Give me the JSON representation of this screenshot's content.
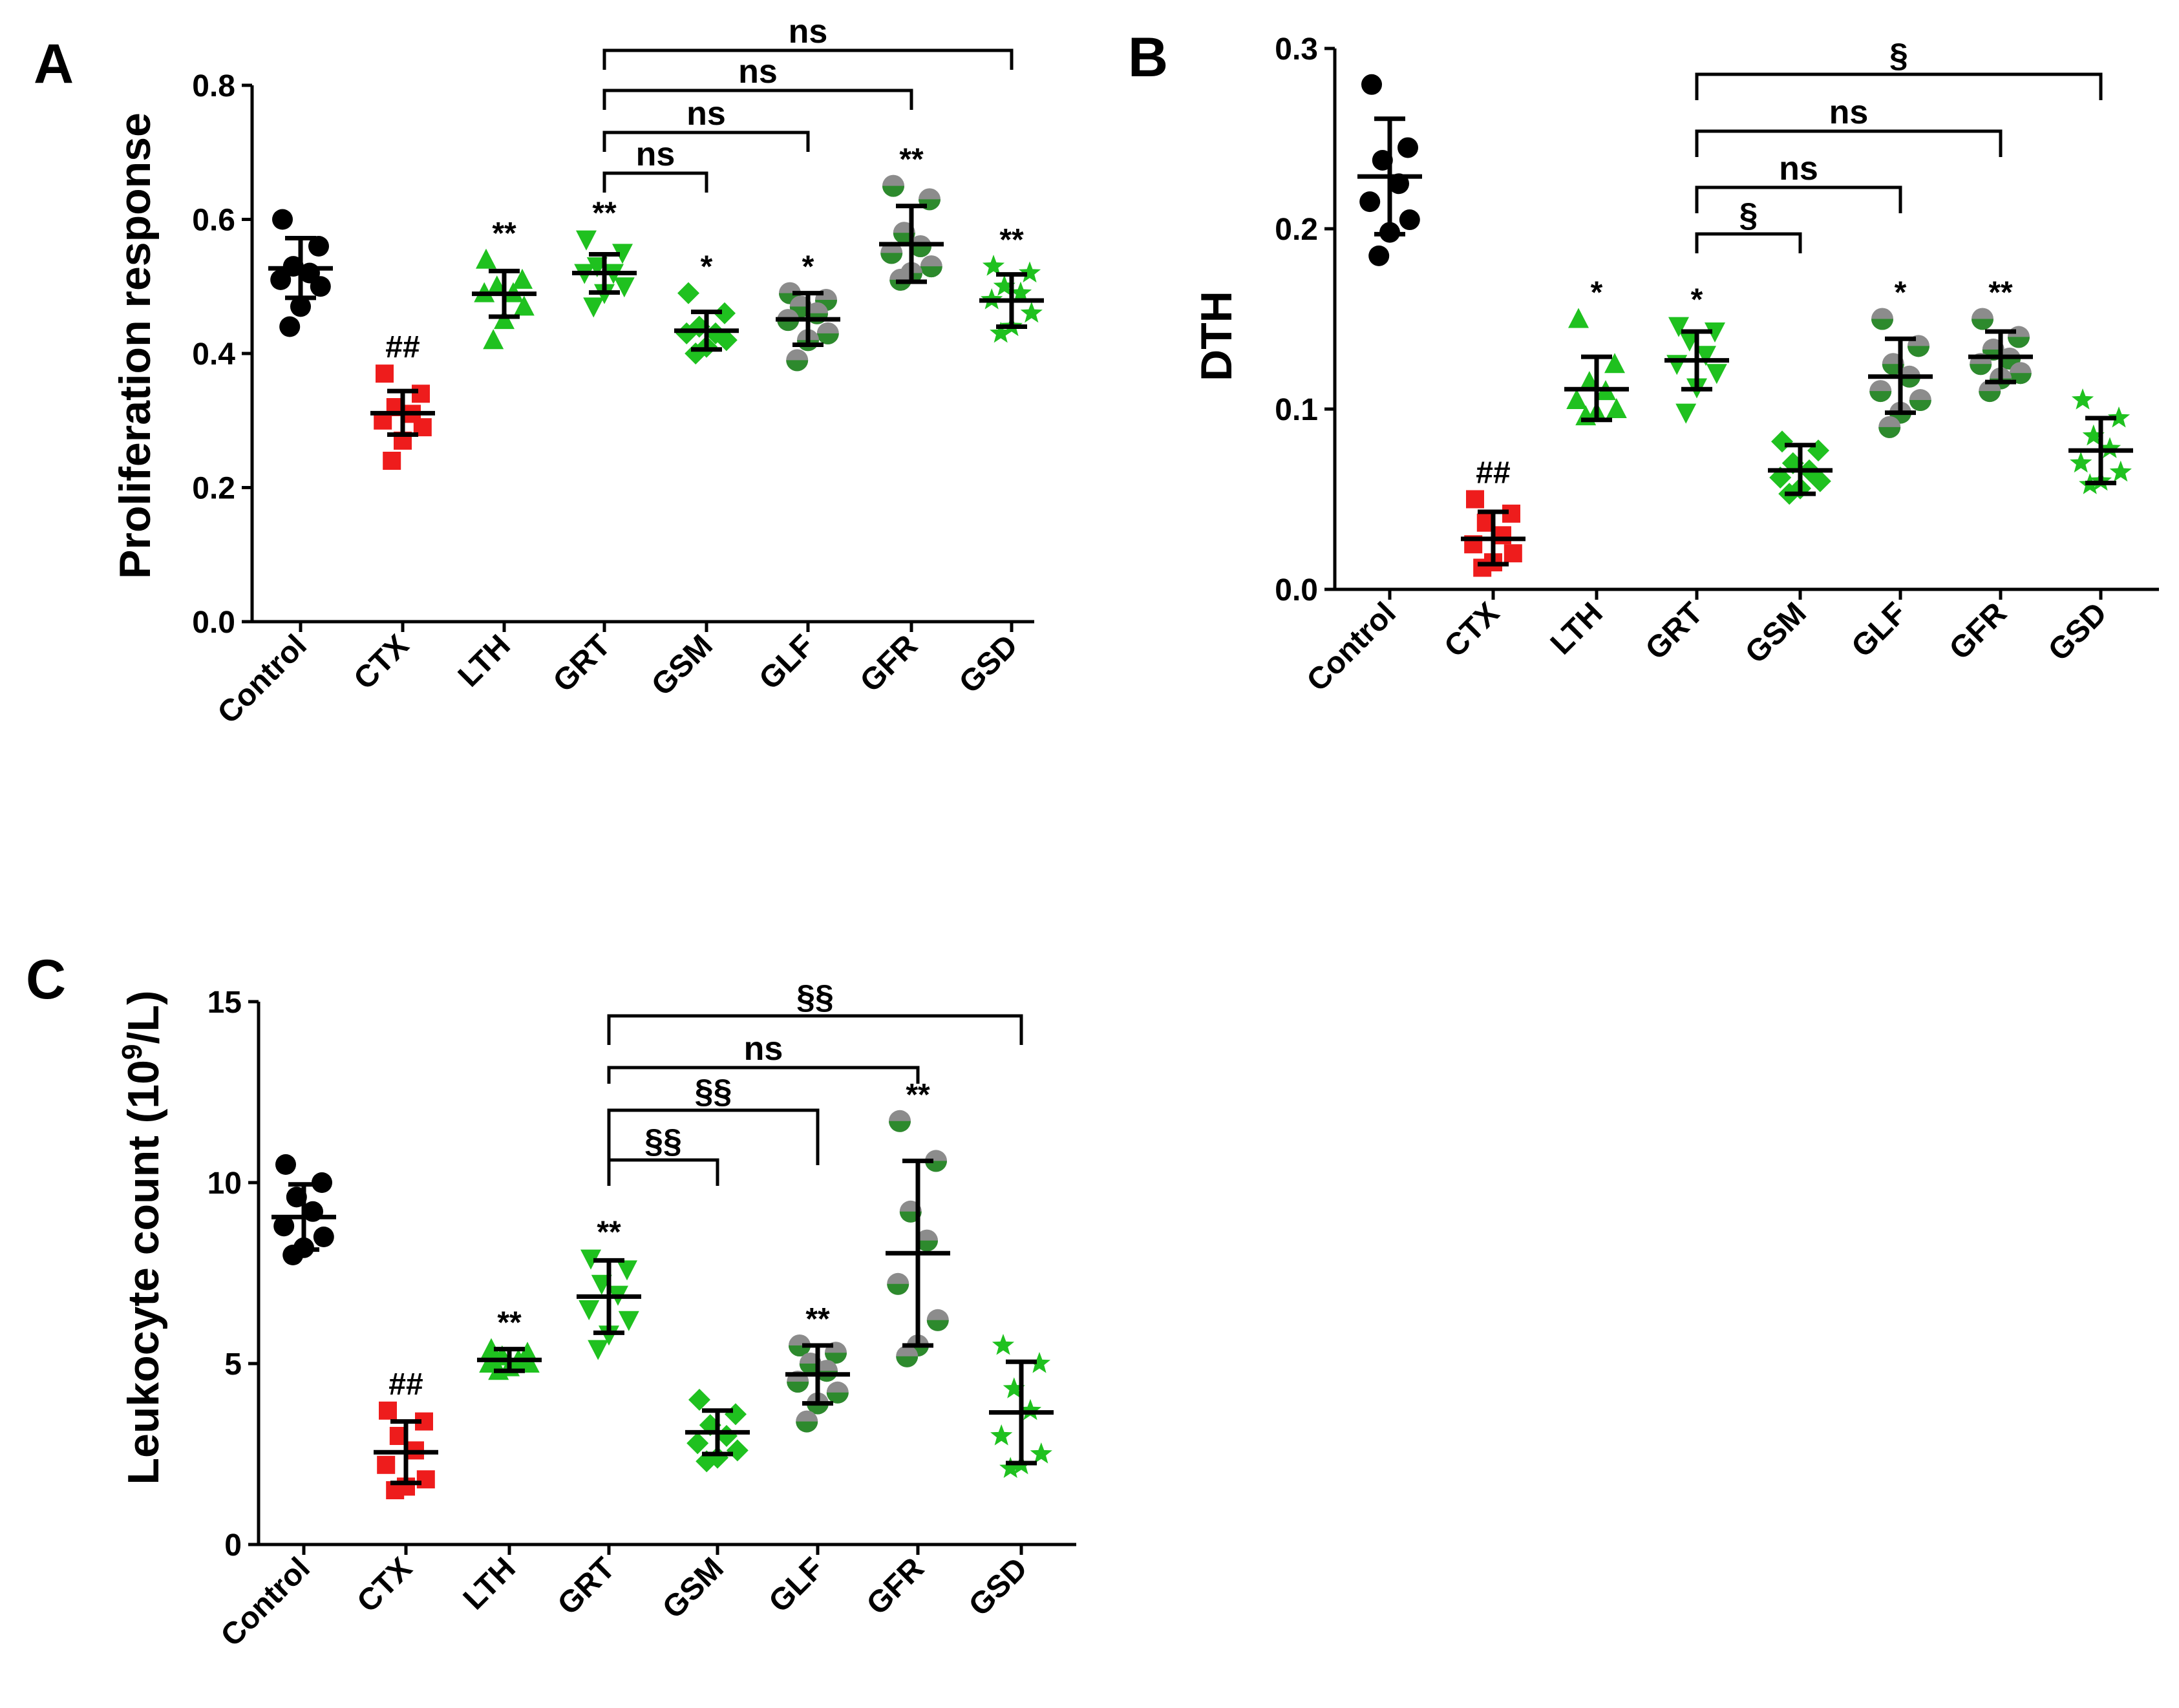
{
  "colors": {
    "black": "#000000",
    "red": "#ee1c1c",
    "green": "#1fc11f",
    "gray": "#8c8c8c",
    "dark_green": "#2d8a2d"
  },
  "chart_data": [
    {
      "id": "A",
      "panel_label": "A",
      "type": "scatter",
      "ylabel": "Proliferation response",
      "ylim": [
        0,
        0.8
      ],
      "yticks": [
        0.0,
        0.2,
        0.4,
        0.6,
        0.8
      ],
      "ytick_labels": [
        "0.0",
        "0.2",
        "0.4",
        "0.6",
        "0.8"
      ],
      "categories": [
        "Control",
        "CTX",
        "LTH",
        "GRT",
        "GSM",
        "GLF",
        "GFR",
        "GSD"
      ],
      "groups": [
        {
          "name": "Control",
          "marker": "circle",
          "color": "black",
          "mean": 0.527,
          "sd_low": 0.483,
          "sd_high": 0.572,
          "points": [
            0.6,
            0.56,
            0.53,
            0.52,
            0.51,
            0.5,
            0.47,
            0.44
          ],
          "label": ""
        },
        {
          "name": "CTX",
          "marker": "square",
          "color": "red",
          "mean": 0.311,
          "sd_low": 0.279,
          "sd_high": 0.344,
          "points": [
            0.37,
            0.34,
            0.32,
            0.31,
            0.3,
            0.29,
            0.27,
            0.24
          ],
          "label": "##"
        },
        {
          "name": "LTH",
          "marker": "triangle",
          "color": "green",
          "mean": 0.489,
          "sd_low": 0.455,
          "sd_high": 0.523,
          "points": [
            0.54,
            0.51,
            0.5,
            0.49,
            0.49,
            0.47,
            0.45,
            0.42
          ],
          "label": "**"
        },
        {
          "name": "GRT",
          "marker": "triangle-down",
          "color": "green",
          "mean": 0.52,
          "sd_low": 0.491,
          "sd_high": 0.548,
          "points": [
            0.57,
            0.55,
            0.53,
            0.52,
            0.52,
            0.5,
            0.49,
            0.47
          ],
          "label": "**"
        },
        {
          "name": "GSM",
          "marker": "diamond",
          "color": "green",
          "mean": 0.434,
          "sd_low": 0.406,
          "sd_high": 0.462,
          "points": [
            0.49,
            0.46,
            0.44,
            0.43,
            0.43,
            0.42,
            0.41,
            0.4
          ],
          "label": "*"
        },
        {
          "name": "GLF",
          "marker": "circle-half",
          "color": "gray",
          "mean": 0.451,
          "sd_low": 0.413,
          "sd_high": 0.49,
          "points": [
            0.49,
            0.48,
            0.47,
            0.46,
            0.45,
            0.43,
            0.42,
            0.39
          ],
          "label": "*"
        },
        {
          "name": "GFR",
          "marker": "circle-half",
          "color": "gray",
          "mean": 0.563,
          "sd_low": 0.507,
          "sd_high": 0.62,
          "points": [
            0.65,
            0.63,
            0.58,
            0.56,
            0.55,
            0.53,
            0.52,
            0.51
          ],
          "label": "**"
        },
        {
          "name": "GSD",
          "marker": "star",
          "color": "green",
          "mean": 0.479,
          "sd_low": 0.44,
          "sd_high": 0.518,
          "points": [
            0.53,
            0.52,
            0.5,
            0.49,
            0.48,
            0.46,
            0.44,
            0.43
          ],
          "label": "**"
        }
      ],
      "brackets": [
        {
          "from": "GRT",
          "to": "GSM",
          "label": "ns"
        },
        {
          "from": "GRT",
          "to": "GLF",
          "label": "ns"
        },
        {
          "from": "GRT",
          "to": "GFR",
          "label": "ns"
        },
        {
          "from": "GRT",
          "to": "GSD",
          "label": "ns"
        }
      ]
    },
    {
      "id": "B",
      "panel_label": "B",
      "type": "scatter",
      "ylabel": "DTH",
      "ylim": [
        0,
        0.3
      ],
      "yticks": [
        0.0,
        0.1,
        0.2,
        0.3
      ],
      "ytick_labels": [
        "0.0",
        "0.1",
        "0.2",
        "0.3"
      ],
      "categories": [
        "Control",
        "CTX",
        "LTH",
        "GRT",
        "GSM",
        "GLF",
        "GFR",
        "GSD"
      ],
      "groups": [
        {
          "name": "Control",
          "marker": "circle",
          "color": "black",
          "mean": 0.229,
          "sd_low": 0.197,
          "sd_high": 0.261,
          "points": [
            0.28,
            0.245,
            0.238,
            0.225,
            0.215,
            0.205,
            0.198,
            0.185
          ],
          "label": ""
        },
        {
          "name": "CTX",
          "marker": "square",
          "color": "red",
          "mean": 0.028,
          "sd_low": 0.014,
          "sd_high": 0.043,
          "points": [
            0.05,
            0.042,
            0.037,
            0.03,
            0.025,
            0.02,
            0.015,
            0.012
          ],
          "label": "##"
        },
        {
          "name": "LTH",
          "marker": "triangle",
          "color": "green",
          "mean": 0.111,
          "sd_low": 0.094,
          "sd_high": 0.129,
          "points": [
            0.15,
            0.125,
            0.115,
            0.11,
            0.105,
            0.1,
            0.098,
            0.096
          ],
          "label": "*"
        },
        {
          "name": "GRT",
          "marker": "triangle-down",
          "color": "green",
          "mean": 0.127,
          "sd_low": 0.111,
          "sd_high": 0.143,
          "points": [
            0.146,
            0.143,
            0.138,
            0.13,
            0.125,
            0.12,
            0.112,
            0.098
          ],
          "label": "*"
        },
        {
          "name": "GSM",
          "marker": "diamond",
          "color": "green",
          "mean": 0.066,
          "sd_low": 0.053,
          "sd_high": 0.08,
          "points": [
            0.082,
            0.077,
            0.07,
            0.066,
            0.062,
            0.06,
            0.056,
            0.053
          ],
          "label": ""
        },
        {
          "name": "GLF",
          "marker": "circle-half",
          "color": "gray",
          "mean": 0.118,
          "sd_low": 0.098,
          "sd_high": 0.139,
          "points": [
            0.15,
            0.135,
            0.125,
            0.118,
            0.11,
            0.105,
            0.098,
            0.09
          ],
          "label": "*"
        },
        {
          "name": "GFR",
          "marker": "circle-half",
          "color": "gray",
          "mean": 0.129,
          "sd_low": 0.115,
          "sd_high": 0.143,
          "points": [
            0.15,
            0.14,
            0.133,
            0.128,
            0.125,
            0.12,
            0.117,
            0.11
          ],
          "label": "**"
        },
        {
          "name": "GSD",
          "marker": "star",
          "color": "green",
          "mean": 0.077,
          "sd_low": 0.059,
          "sd_high": 0.095,
          "points": [
            0.105,
            0.095,
            0.085,
            0.078,
            0.07,
            0.065,
            0.06,
            0.058
          ],
          "label": ""
        }
      ],
      "brackets": [
        {
          "from": "GRT",
          "to": "GSM",
          "label": "§"
        },
        {
          "from": "GRT",
          "to": "GLF",
          "label": "ns"
        },
        {
          "from": "GRT",
          "to": "GFR",
          "label": "ns"
        },
        {
          "from": "GRT",
          "to": "GSD",
          "label": "§"
        }
      ]
    },
    {
      "id": "C",
      "panel_label": "C",
      "type": "scatter",
      "ylabel": "Leukocyte count (10^9/L)",
      "ylabel_prefix": "Leukocyte count (10",
      "ylabel_sup": "9",
      "ylabel_suffix": "/L)",
      "ylim": [
        0,
        15
      ],
      "yticks": [
        0,
        5,
        10,
        15
      ],
      "ytick_labels": [
        "0",
        "5",
        "10",
        "15"
      ],
      "categories": [
        "Control",
        "CTX",
        "LTH",
        "GRT",
        "GSM",
        "GLF",
        "GFR",
        "GSD"
      ],
      "groups": [
        {
          "name": "Control",
          "marker": "circle",
          "color": "black",
          "mean": 9.05,
          "sd_low": 8.15,
          "sd_high": 9.95,
          "points": [
            10.5,
            10.0,
            9.6,
            9.2,
            8.8,
            8.5,
            8.2,
            8.0
          ],
          "label": ""
        },
        {
          "name": "CTX",
          "marker": "square",
          "color": "red",
          "mean": 2.55,
          "sd_low": 1.7,
          "sd_high": 3.4,
          "points": [
            3.7,
            3.4,
            3.0,
            2.6,
            2.2,
            1.8,
            1.6,
            1.5
          ],
          "label": "##"
        },
        {
          "name": "LTH",
          "marker": "triangle",
          "color": "green",
          "mean": 5.1,
          "sd_low": 4.8,
          "sd_high": 5.4,
          "points": [
            5.4,
            5.3,
            5.2,
            5.1,
            5.0,
            5.0,
            4.9,
            4.8
          ],
          "label": "**"
        },
        {
          "name": "GRT",
          "marker": "triangle-down",
          "color": "green",
          "mean": 6.85,
          "sd_low": 5.85,
          "sd_high": 7.85,
          "points": [
            7.9,
            7.6,
            7.2,
            6.9,
            6.5,
            6.2,
            5.8,
            5.4
          ],
          "label": "**"
        },
        {
          "name": "GSM",
          "marker": "diamond",
          "color": "green",
          "mean": 3.1,
          "sd_low": 2.5,
          "sd_high": 3.7,
          "points": [
            4.0,
            3.6,
            3.3,
            3.0,
            2.8,
            2.6,
            2.4,
            2.3
          ],
          "label": ""
        },
        {
          "name": "GLF",
          "marker": "circle-half",
          "color": "gray",
          "mean": 4.7,
          "sd_low": 3.9,
          "sd_high": 5.5,
          "points": [
            5.5,
            5.3,
            5.0,
            4.8,
            4.5,
            4.2,
            3.9,
            3.4
          ],
          "label": "**"
        },
        {
          "name": "GFR",
          "marker": "circle-half",
          "color": "gray",
          "mean": 8.05,
          "sd_low": 5.5,
          "sd_high": 10.6,
          "points": [
            11.7,
            10.6,
            9.2,
            8.4,
            7.2,
            6.2,
            5.5,
            5.2
          ],
          "label": "**"
        },
        {
          "name": "GSD",
          "marker": "star",
          "color": "green",
          "mean": 3.65,
          "sd_low": 2.25,
          "sd_high": 5.05,
          "points": [
            5.5,
            5.0,
            4.3,
            3.7,
            3.0,
            2.5,
            2.2,
            2.1
          ],
          "label": ""
        }
      ],
      "brackets": [
        {
          "from": "GRT",
          "to": "GSM",
          "label": "§§"
        },
        {
          "from": "GRT",
          "to": "GLF",
          "label": "§§"
        },
        {
          "from": "GRT",
          "to": "GFR",
          "label": "ns"
        },
        {
          "from": "GRT",
          "to": "GSD",
          "label": "§§"
        }
      ]
    }
  ]
}
